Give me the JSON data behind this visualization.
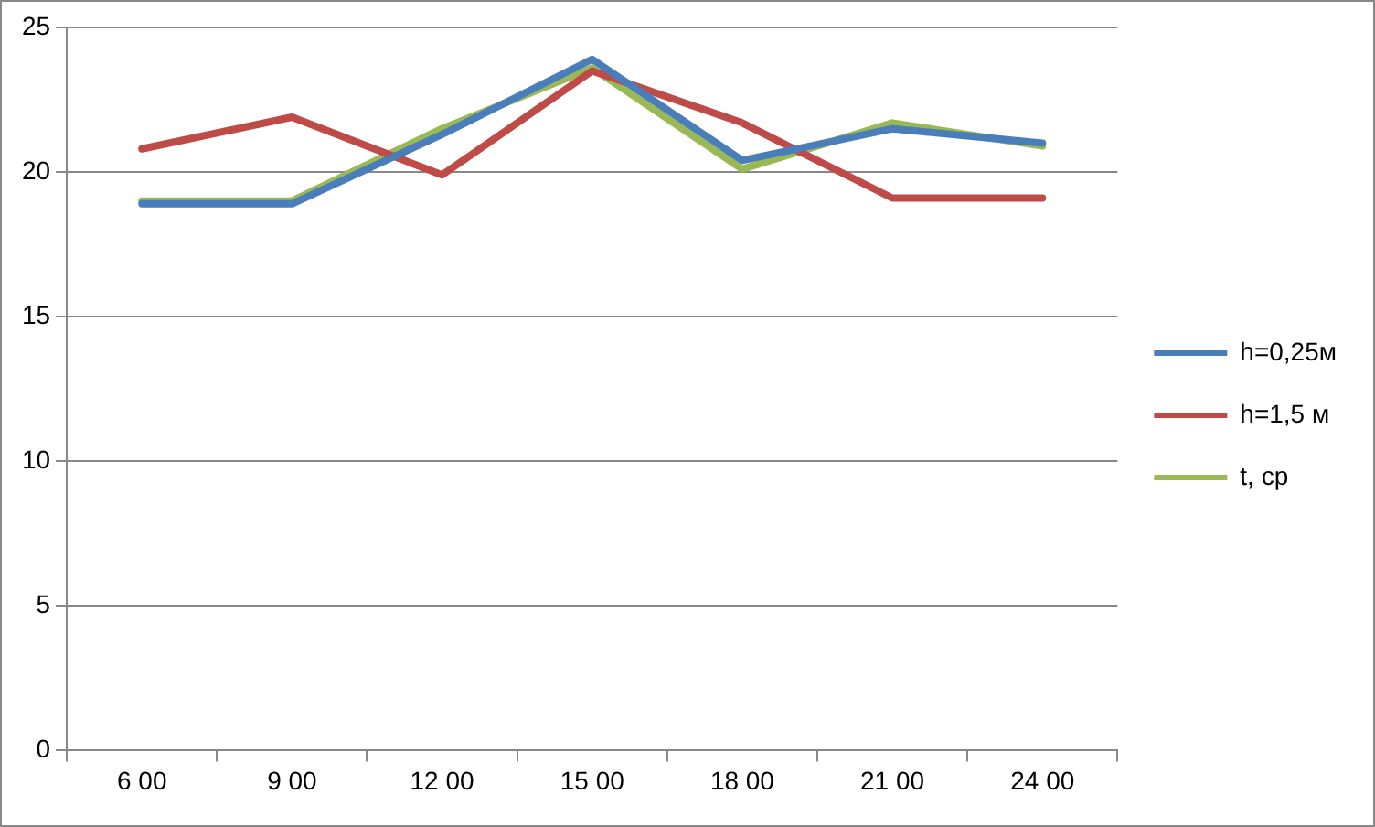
{
  "chart_data": {
    "type": "line",
    "categories": [
      "6 00",
      "9 00",
      "12 00",
      "15 00",
      "18 00",
      "21 00",
      "24 00"
    ],
    "series": [
      {
        "name": "h=0,25м",
        "color": "#4a7ebb",
        "values": [
          18.9,
          18.9,
          21.3,
          23.9,
          20.4,
          21.5,
          21.0
        ]
      },
      {
        "name": "h=1,5 м",
        "color": "#be4b48",
        "values": [
          20.8,
          21.9,
          19.9,
          23.5,
          21.7,
          19.1,
          19.1
        ]
      },
      {
        "name": "t, ср",
        "color": "#98b954",
        "values": [
          19.0,
          19.0,
          21.5,
          23.6,
          20.1,
          21.7,
          20.9
        ]
      }
    ],
    "ylim": [
      0,
      25
    ],
    "yticks": [
      0,
      5,
      10,
      15,
      20,
      25
    ],
    "grid": "y",
    "legend": "right",
    "marker": "none",
    "line_style": "solid"
  }
}
